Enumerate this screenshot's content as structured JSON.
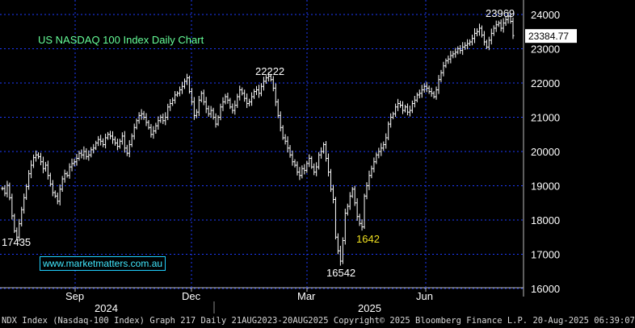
{
  "chart_data": {
    "type": "ohlc",
    "title": "US NASDAQ 100 Index Daily Chart",
    "ylim": [
      16000,
      24400
    ],
    "yticks": [
      16000,
      17000,
      18000,
      19000,
      20000,
      21000,
      22000,
      23000,
      24000
    ],
    "ytick_labels": [
      "16000",
      "17000",
      "18000",
      "19000",
      "20000",
      "21000",
      "22000",
      "23000",
      "24000"
    ],
    "x_month_labels": [
      "Sep",
      "Dec",
      "Mar",
      "Jun"
    ],
    "x_year_labels": [
      "2024",
      "2025"
    ],
    "last_price": "23384.77",
    "annotations": [
      {
        "text": "23969",
        "value": 23969,
        "color": "#ffffff"
      },
      {
        "text": "22222",
        "value": 22222,
        "color": "#ffffff"
      },
      {
        "text": "17435",
        "value": 17435,
        "color": "#ffffff"
      },
      {
        "text": "16542",
        "value": 16542,
        "color": "#ffffff"
      },
      {
        "text": "1642",
        "value": 1642,
        "color": "#f0e020"
      }
    ],
    "grid": true,
    "series": [
      {
        "period": "approx. Aug 2024 - Aug 2025 (daily closes, estimated)",
        "closes": [
          18920,
          18780,
          19010,
          18650,
          18120,
          17680,
          17500,
          17890,
          18300,
          18650,
          18980,
          19350,
          19600,
          19820,
          19900,
          19850,
          19700,
          19500,
          19600,
          19300,
          19050,
          18800,
          18700,
          18550,
          18900,
          19200,
          19350,
          19300,
          19550,
          19650,
          19700,
          19800,
          19950,
          19900,
          20000,
          19850,
          19900,
          20050,
          20100,
          20250,
          20350,
          20300,
          20200,
          20400,
          20500,
          20450,
          20350,
          20250,
          20150,
          20300,
          20450,
          20100,
          19950,
          20200,
          20450,
          20700,
          20900,
          21050,
          21100,
          21000,
          20850,
          20700,
          20500,
          20600,
          20750,
          20900,
          21000,
          20900,
          21000,
          21300,
          21400,
          21500,
          21650,
          21700,
          21800,
          21900,
          22050,
          22150,
          21750,
          21450,
          21050,
          21150,
          21500,
          21700,
          21450,
          21250,
          21100,
          21200,
          21000,
          20800,
          21000,
          21300,
          21450,
          21600,
          21500,
          21300,
          21200,
          21350,
          21600,
          21800,
          21700,
          21550,
          21400,
          21450,
          21600,
          21750,
          21800,
          21700,
          21900,
          22050,
          22150,
          22200,
          22100,
          21850,
          21450,
          21050,
          20700,
          20400,
          20300,
          20100,
          19900,
          19700,
          19600,
          19400,
          19300,
          19500,
          19450,
          19650,
          19800,
          19550,
          19400,
          19550,
          19900,
          20000,
          20200,
          19800,
          19400,
          18900,
          18600,
          17500,
          17100,
          16800,
          17400,
          18200,
          18400,
          18700,
          18900,
          18500,
          18100,
          17900,
          17800,
          18700,
          19000,
          19300,
          19500,
          19700,
          19900,
          20000,
          20100,
          20200,
          20400,
          20800,
          21000,
          21100,
          21300,
          21400,
          21350,
          21200,
          21300,
          21150,
          21200,
          21400,
          21500,
          21650,
          21700,
          21800,
          21900,
          21850,
          21750,
          21700,
          21600,
          21800,
          22100,
          22300,
          22500,
          22650,
          22700,
          22800,
          22850,
          22900,
          23000,
          22950,
          23050,
          23100,
          23150,
          23200,
          23300,
          23450,
          23500,
          23600,
          23400,
          23200,
          23050,
          23250,
          23450,
          23600,
          23700,
          23750,
          23600,
          23750,
          23850,
          23950,
          23800,
          23384
        ]
      }
    ]
  },
  "footer": {
    "text": "NDX Index (Nasdaq-100 Index) Graph 217  Daily 21AUG2023-20AUG2025 Copyright© 2025 Bloomberg Finance L.P.  20-Aug-2025 06:39:07"
  },
  "watermark": "www.marketmatters.com.au",
  "colors": {
    "background": "#000000",
    "grid": "#1e3bff",
    "bars": "#ffffff",
    "title": "#66ff99",
    "axis_text": "#ffffff",
    "last_price_box": "#ffffff",
    "highlight_label": "#f0e020"
  }
}
